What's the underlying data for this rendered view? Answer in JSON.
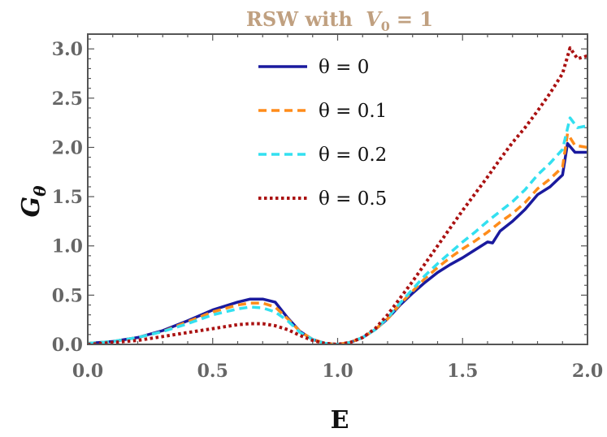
{
  "chart_data": {
    "type": "line",
    "title_prefix": "RSW with",
    "title_var": "V",
    "title_sub": "0",
    "title_suffix": "= 1",
    "xlabel": "E",
    "ylabel_main": "G",
    "ylabel_sub": "θ",
    "xlim": [
      0,
      2
    ],
    "ylim": [
      0,
      3.15
    ],
    "xticks": [
      0,
      0.5,
      1,
      1.5,
      2
    ],
    "xtick_labels": [
      "0.0",
      "0.5",
      "1.0",
      "1.5",
      "2.0"
    ],
    "yticks": [
      0,
      0.5,
      1,
      1.5,
      2,
      2.5,
      3
    ],
    "ytick_labels": [
      "0.0",
      "0.5",
      "1.0",
      "1.5",
      "2.0",
      "2.5",
      "3.0"
    ],
    "legend_position": "top-center",
    "series": [
      {
        "name": "θ = 0",
        "label": "θ = 0",
        "color": "#1a1a9e",
        "dash": "solid",
        "x": [
          0,
          0.1,
          0.2,
          0.3,
          0.4,
          0.5,
          0.6,
          0.65,
          0.7,
          0.75,
          0.8,
          0.85,
          0.9,
          0.95,
          1.0,
          1.05,
          1.1,
          1.15,
          1.2,
          1.25,
          1.3,
          1.35,
          1.4,
          1.45,
          1.5,
          1.55,
          1.6,
          1.62,
          1.65,
          1.7,
          1.75,
          1.8,
          1.85,
          1.9,
          1.92,
          1.95,
          2.0
        ],
        "y": [
          0.01,
          0.03,
          0.07,
          0.14,
          0.24,
          0.35,
          0.43,
          0.46,
          0.46,
          0.43,
          0.27,
          0.13,
          0.05,
          0.01,
          0.0,
          0.02,
          0.07,
          0.15,
          0.26,
          0.4,
          0.52,
          0.63,
          0.73,
          0.81,
          0.88,
          0.96,
          1.04,
          1.03,
          1.15,
          1.25,
          1.37,
          1.52,
          1.6,
          1.72,
          2.04,
          1.95,
          1.95
        ]
      },
      {
        "name": "θ = 0.1",
        "label": "θ = 0.1",
        "color": "#ff8c1a",
        "dash": "dashed",
        "x": [
          0,
          0.1,
          0.2,
          0.3,
          0.4,
          0.5,
          0.6,
          0.65,
          0.7,
          0.75,
          0.8,
          0.85,
          0.9,
          0.95,
          1.0,
          1.05,
          1.1,
          1.15,
          1.2,
          1.25,
          1.3,
          1.35,
          1.4,
          1.45,
          1.5,
          1.55,
          1.6,
          1.65,
          1.7,
          1.75,
          1.8,
          1.85,
          1.9,
          1.92,
          1.95,
          2.0
        ],
        "y": [
          0.01,
          0.03,
          0.07,
          0.13,
          0.23,
          0.33,
          0.4,
          0.42,
          0.42,
          0.38,
          0.26,
          0.13,
          0.05,
          0.01,
          0.0,
          0.02,
          0.07,
          0.15,
          0.26,
          0.41,
          0.54,
          0.67,
          0.78,
          0.88,
          0.97,
          1.05,
          1.14,
          1.24,
          1.33,
          1.44,
          1.58,
          1.68,
          1.8,
          2.14,
          2.02,
          2.0
        ]
      },
      {
        "name": "θ = 0.2",
        "label": "θ = 0.2",
        "color": "#33e0f0",
        "dash": "dashed",
        "x": [
          0,
          0.1,
          0.2,
          0.3,
          0.4,
          0.5,
          0.6,
          0.65,
          0.7,
          0.75,
          0.8,
          0.85,
          0.9,
          0.95,
          1.0,
          1.05,
          1.1,
          1.15,
          1.2,
          1.25,
          1.3,
          1.35,
          1.4,
          1.45,
          1.5,
          1.55,
          1.6,
          1.65,
          1.7,
          1.75,
          1.8,
          1.85,
          1.9,
          1.93,
          1.96,
          2.0
        ],
        "y": [
          0.01,
          0.03,
          0.07,
          0.13,
          0.21,
          0.3,
          0.36,
          0.38,
          0.37,
          0.33,
          0.24,
          0.12,
          0.05,
          0.01,
          0.0,
          0.02,
          0.07,
          0.15,
          0.27,
          0.42,
          0.56,
          0.7,
          0.82,
          0.93,
          1.04,
          1.14,
          1.25,
          1.35,
          1.45,
          1.57,
          1.72,
          1.84,
          1.98,
          2.3,
          2.2,
          2.22
        ]
      },
      {
        "name": "θ = 0.5",
        "label": "θ = 0.5",
        "color": "#aa1111",
        "dash": "dotted",
        "x": [
          0,
          0.1,
          0.2,
          0.3,
          0.4,
          0.5,
          0.6,
          0.65,
          0.7,
          0.75,
          0.8,
          0.85,
          0.9,
          0.95,
          1.0,
          1.05,
          1.1,
          1.15,
          1.2,
          1.25,
          1.3,
          1.35,
          1.4,
          1.45,
          1.5,
          1.55,
          1.6,
          1.65,
          1.7,
          1.75,
          1.8,
          1.85,
          1.9,
          1.93,
          1.96,
          2.0
        ],
        "y": [
          0.0,
          0.02,
          0.04,
          0.08,
          0.12,
          0.16,
          0.2,
          0.21,
          0.21,
          0.19,
          0.15,
          0.09,
          0.04,
          0.01,
          0.0,
          0.02,
          0.07,
          0.16,
          0.3,
          0.47,
          0.64,
          0.82,
          1.0,
          1.18,
          1.36,
          1.53,
          1.7,
          1.88,
          2.05,
          2.2,
          2.37,
          2.55,
          2.75,
          3.01,
          2.9,
          2.93
        ]
      }
    ]
  }
}
